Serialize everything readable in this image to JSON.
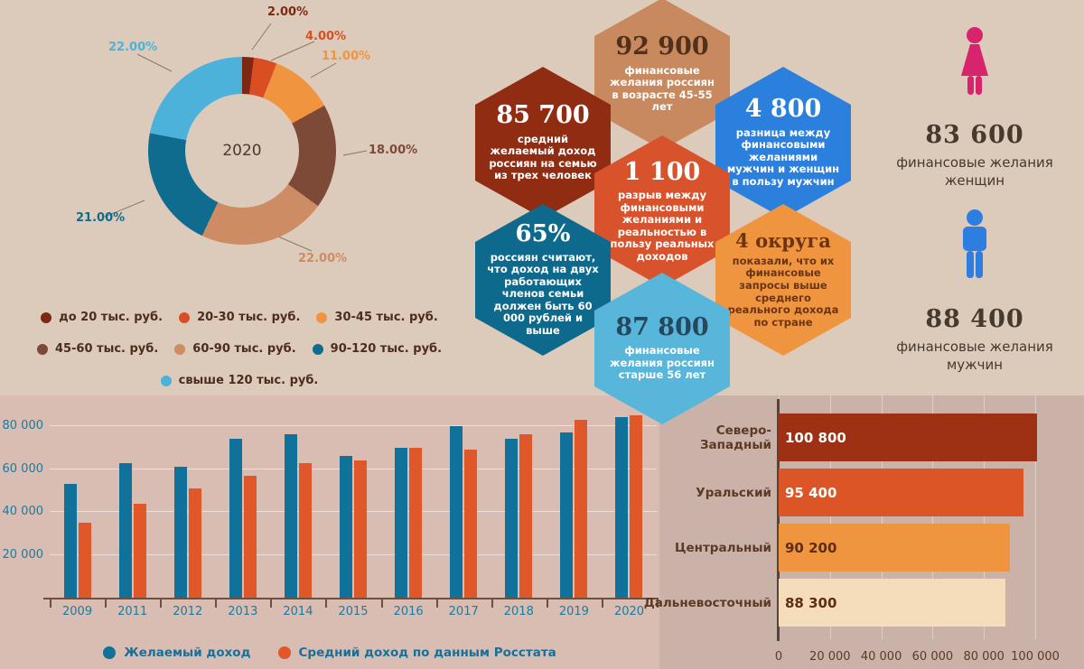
{
  "chart_data": [
    {
      "type": "pie",
      "donut": true,
      "center_label": "2020",
      "labels": [
        "до 20 тыс. руб.",
        "20-30 тыс. руб.",
        "30-45 тыс. руб.",
        "45-60 тыс. руб.",
        "60-90 тыс. руб.",
        "90-120 тыс. руб.",
        "свыше 120 тыс. руб."
      ],
      "values": [
        2,
        4,
        11,
        18,
        22,
        21,
        22
      ],
      "value_labels": [
        "2.00%",
        "4.00%",
        "11.00%",
        "18.00%",
        "22.00%",
        "21.00%",
        "22.00%"
      ],
      "colors": [
        "#7e2713",
        "#d94f23",
        "#f09440",
        "#7d4a38",
        "#cd8c63",
        "#0f6c8e",
        "#4cb2da"
      ],
      "legend_position": "bottom"
    },
    {
      "type": "bar",
      "categories": [
        "2009",
        "2011",
        "2012",
        "2013",
        "2014",
        "2015",
        "2016",
        "2017",
        "2018",
        "2019",
        "2020"
      ],
      "series": [
        {
          "name": "Желаемый доход",
          "color": "#10719a",
          "values": [
            53000,
            63000,
            61000,
            74000,
            76000,
            66000,
            70000,
            80000,
            74000,
            77000,
            84000
          ]
        },
        {
          "name": "Средний доход по данным Росстата",
          "color": "#e0572a",
          "values": [
            35000,
            44000,
            51000,
            57000,
            63000,
            64000,
            70000,
            69000,
            76000,
            83000,
            85000
          ]
        }
      ],
      "yticks": [
        "20 000",
        "40 000",
        "60 000",
        "80 000"
      ],
      "ytick_values": [
        20000,
        40000,
        60000,
        80000
      ],
      "ylim": [
        0,
        90000
      ],
      "grid": true,
      "legend_position": "bottom"
    },
    {
      "type": "bar",
      "orientation": "horizontal",
      "categories": [
        "Северо-Западный",
        "Уральский",
        "Центральный",
        "Дальневосточный"
      ],
      "values": [
        100800,
        95400,
        90200,
        88300
      ],
      "value_labels": [
        "100 800",
        "95 400",
        "90 200",
        "88 300"
      ],
      "colors": [
        "#9e3113",
        "#dc5526",
        "#f0953f",
        "#f5dcba"
      ],
      "value_text_colors": [
        "#ffffff",
        "#ffffff",
        "#5d2f10",
        "#5d2f10"
      ],
      "xticks": [
        "0",
        "20 000",
        "40 000",
        "60 000",
        "80 000",
        "100 000"
      ],
      "xtick_values": [
        0,
        20000,
        40000,
        60000,
        80000,
        100000
      ],
      "xlim": [
        0,
        119000
      ],
      "grid": true
    }
  ],
  "hexagons": [
    {
      "value": "92 900",
      "desc": "финансовые желания россиян в возрасте 45-55 лет",
      "color": "#c9895e",
      "value_color": "#53301a",
      "desc_color": "#ffffff"
    },
    {
      "value": "85 700",
      "desc": "средний желаемый доход россиян на семью из трех человек",
      "color": "#8f2c11",
      "value_color": "#ffffff",
      "desc_color": "#ffffff"
    },
    {
      "value": "4 800",
      "desc": "разница между финансовыми желаниями мужчин и женщин в пользу мужчин",
      "color": "#2b7fdd",
      "value_color": "#ffffff",
      "desc_color": "#ffffff"
    },
    {
      "value": "1 100",
      "desc": "разрыв между финансовыми желаниями и реальностью в пользу реальных доходов",
      "color": "#d8532b",
      "value_color": "#ffffff",
      "desc_color": "#ffffff"
    },
    {
      "value": "65%",
      "desc": "россиян считают, что доход на двух работающих членов семьи должен быть 60 000 рублей и выше",
      "color": "#0e6a8d",
      "value_color": "#ffffff",
      "desc_color": "#ffffff"
    },
    {
      "value": "4 округа",
      "desc": "показали, что их финансовые запросы выше среднего реального дохода по стране",
      "color": "#f0953f",
      "value_color": "#6b3413",
      "desc_color": "#6b3413"
    },
    {
      "value": "87 800",
      "desc": "финансовые желания россиян старше 56 лет",
      "color": "#57b6da",
      "value_color": "#27485c",
      "desc_color": "#ffffff"
    }
  ],
  "gender": {
    "female": {
      "value": "83 600",
      "label": "финансовые желания женщин",
      "color": "#d8246c"
    },
    "male": {
      "value": "88 400",
      "label": "финансовые желания мужчин",
      "color": "#2e7ee2"
    }
  },
  "colors": {
    "bg_top": "#dccbbb",
    "bg_bottom_left": "#d9bdb2",
    "bg_bottom_right": "#cab2a9",
    "axis_text_teal": "#1b7ba0",
    "legend_text": "#4e2c1b",
    "dark_text": "#46392d"
  }
}
